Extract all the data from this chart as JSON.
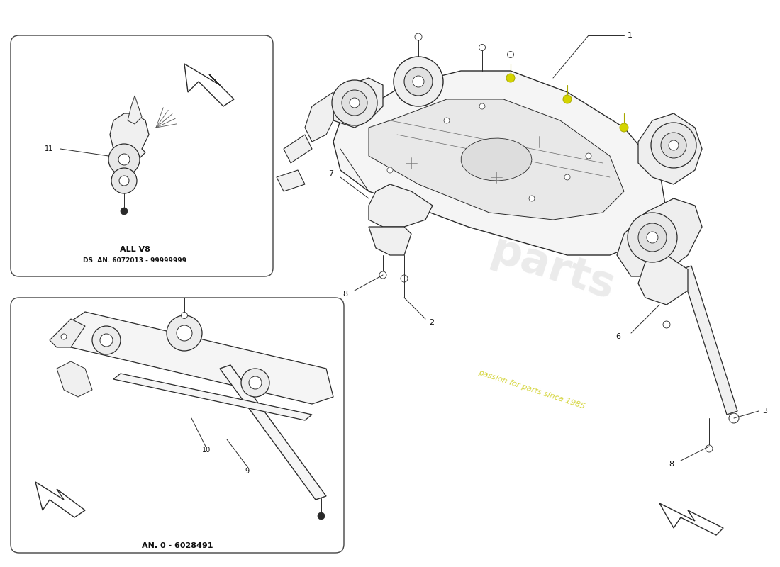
{
  "background_color": "#ffffff",
  "line_color": "#2a2a2a",
  "box_edge_color": "#555555",
  "text_color": "#111111",
  "watermark_light": "#d8d8d8",
  "watermark_yellow": "#c8c800",
  "box1_label1": "ALL V8",
  "box1_label2": "DS  AN. 6072013 - 99999999",
  "box2_label1": "AN. 0 - 6028491",
  "watermark_line1": "passion for parts sinc",
  "watermark_text": "passion for parts since 1985",
  "fig_width": 11.0,
  "fig_height": 8.0,
  "dpi": 100,
  "xlim": [
    0,
    110
  ],
  "ylim": [
    0,
    80
  ]
}
